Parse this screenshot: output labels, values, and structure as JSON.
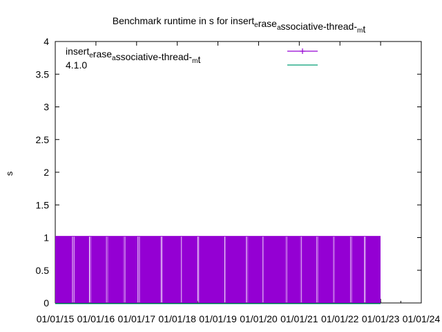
{
  "chart_data": {
    "type": "line",
    "title_parts": [
      {
        "text": "Benchmark runtime in s for insert",
        "sub": false
      },
      {
        "text": "e",
        "sub": true
      },
      {
        "text": "rase",
        "sub": false
      },
      {
        "text": "a",
        "sub": true
      },
      {
        "text": "ssociative-thread-",
        "sub": false
      },
      {
        "text": "m",
        "sub": true
      },
      {
        "text": "t",
        "sub": false
      }
    ],
    "xlabel": "",
    "ylabel": "s",
    "ylim": [
      0,
      4
    ],
    "yticks": [
      "0",
      "0.5",
      "1",
      "1.5",
      "2",
      "2.5",
      "3",
      "3.5",
      "4"
    ],
    "x_range": [
      "2015-01-01",
      "2024-01-01"
    ],
    "xticks": [
      "01/01/15",
      "01/01/16",
      "01/01/17",
      "01/01/18",
      "01/01/19",
      "01/01/20",
      "01/01/21",
      "01/01/22",
      "01/01/23",
      "01/01/24"
    ],
    "grid": false,
    "legend_position": "top-right",
    "series": [
      {
        "name_parts": [
          {
            "text": "insert",
            "sub": false
          },
          {
            "text": "e",
            "sub": true
          },
          {
            "text": "rase",
            "sub": false
          },
          {
            "text": "a",
            "sub": true
          },
          {
            "text": "ssociative-thread-",
            "sub": false
          },
          {
            "text": "m",
            "sub": true
          },
          {
            "text": "t",
            "sub": false
          }
        ],
        "color": "#9400d3",
        "style": "linespoints",
        "date_range": [
          "2015-01-01",
          "2022-12-31"
        ],
        "low_value": 0.0,
        "high_value": 1.02,
        "gaps": [
          [
            "2015-06-01",
            "2015-06-25"
          ],
          [
            "2015-11-01",
            "2015-11-20"
          ],
          [
            "2016-04-01",
            "2016-04-18"
          ],
          [
            "2016-09-05",
            "2016-09-22"
          ],
          [
            "2017-01-10",
            "2017-01-30"
          ],
          [
            "2017-08-01",
            "2017-08-20"
          ],
          [
            "2018-02-01",
            "2018-02-15"
          ],
          [
            "2018-07-01",
            "2018-07-18"
          ],
          [
            "2019-03-01",
            "2019-03-12"
          ],
          [
            "2019-09-10",
            "2019-09-28"
          ],
          [
            "2020-02-01",
            "2020-02-15"
          ],
          [
            "2020-09-01",
            "2020-09-12"
          ],
          [
            "2021-01-10",
            "2021-01-25"
          ],
          [
            "2021-06-01",
            "2021-06-20"
          ],
          [
            "2021-11-01",
            "2021-11-15"
          ],
          [
            "2022-04-01",
            "2022-04-20"
          ],
          [
            "2022-08-01",
            "2022-08-18"
          ]
        ]
      },
      {
        "name": "4.1.0",
        "color": "#009e73",
        "style": "lines",
        "date_range": [
          "2015-01-01",
          "2022-12-31"
        ],
        "value": 0.0
      }
    ]
  }
}
